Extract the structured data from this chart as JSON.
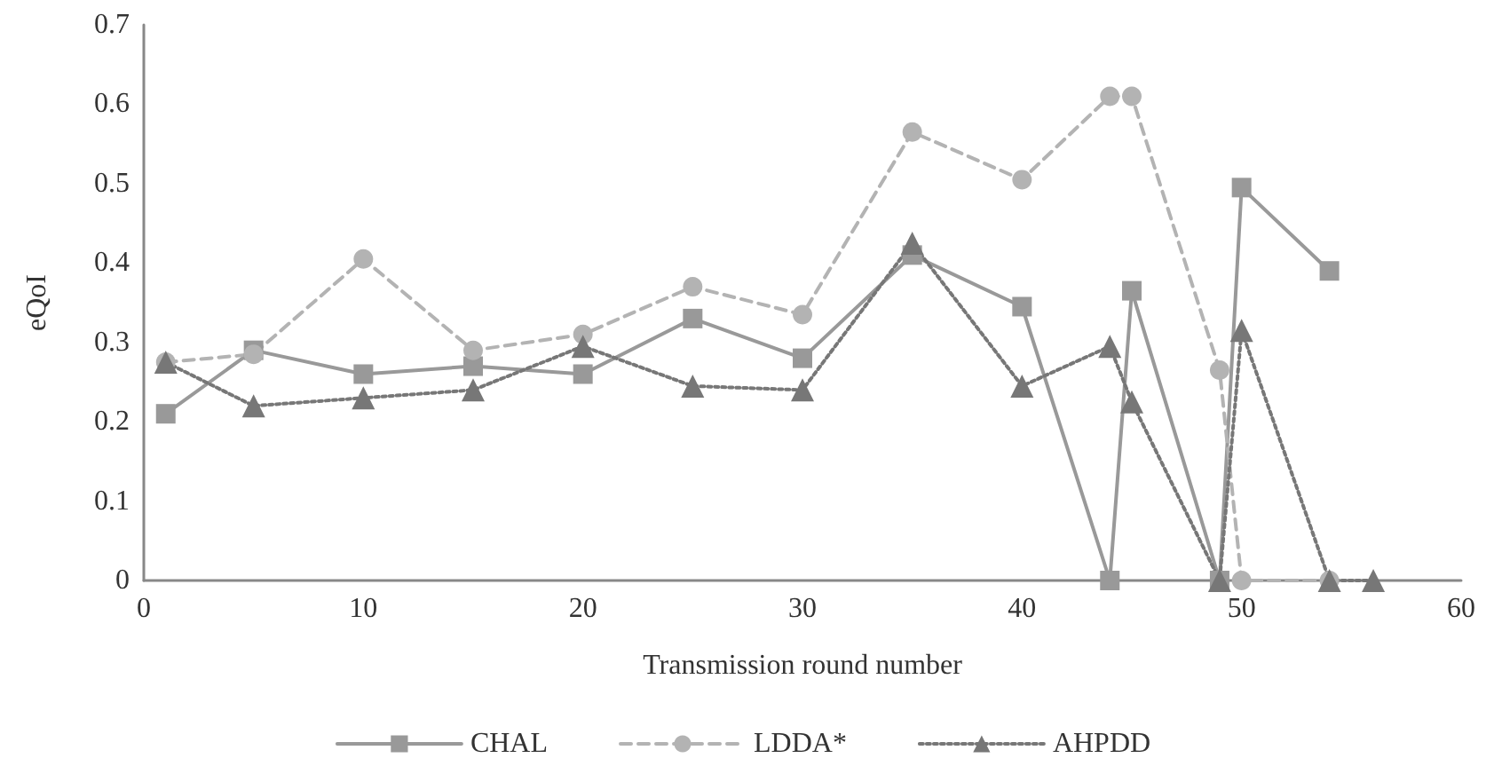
{
  "chart_data": {
    "type": "line",
    "xlabel": "Transmission round number",
    "ylabel": "eQoI",
    "x": [
      1,
      5,
      10,
      15,
      20,
      25,
      30,
      35,
      40,
      44,
      45,
      49,
      50,
      54
    ],
    "series": [
      {
        "name": "CHAL",
        "color": "#999999",
        "marker": "square",
        "line_style": "solid",
        "values": [
          0.21,
          0.29,
          0.26,
          0.27,
          0.26,
          0.33,
          0.28,
          0.41,
          0.345,
          0,
          0.365,
          0,
          0.495,
          0.39
        ]
      },
      {
        "name": "LDDA*",
        "color": "#b3b3b3",
        "marker": "circle",
        "line_style": "dashed",
        "values": [
          0.275,
          0.285,
          0.405,
          0.29,
          0.31,
          0.37,
          0.335,
          0.565,
          0.505,
          0.61,
          0.61,
          0.265,
          0,
          0
        ]
      },
      {
        "name": "AHPDD",
        "color": "#777777",
        "marker": "triangle",
        "line_style": "dotted",
        "x": [
          1,
          5,
          10,
          15,
          20,
          25,
          30,
          35,
          40,
          44,
          45,
          49,
          50,
          54,
          56
        ],
        "values": [
          0.275,
          0.22,
          0.23,
          0.24,
          0.295,
          0.245,
          0.24,
          0.425,
          0.245,
          0.295,
          0.225,
          0,
          0.315,
          0,
          0
        ]
      }
    ],
    "xlim": [
      0,
      60
    ],
    "xticks": [
      0,
      10,
      20,
      30,
      40,
      50,
      60
    ],
    "ylim": [
      0,
      0.7
    ],
    "yticks": [
      0,
      0.1,
      0.2,
      0.3,
      0.4,
      0.5,
      0.6,
      0.7
    ],
    "grid": false,
    "legend": "bottom"
  }
}
